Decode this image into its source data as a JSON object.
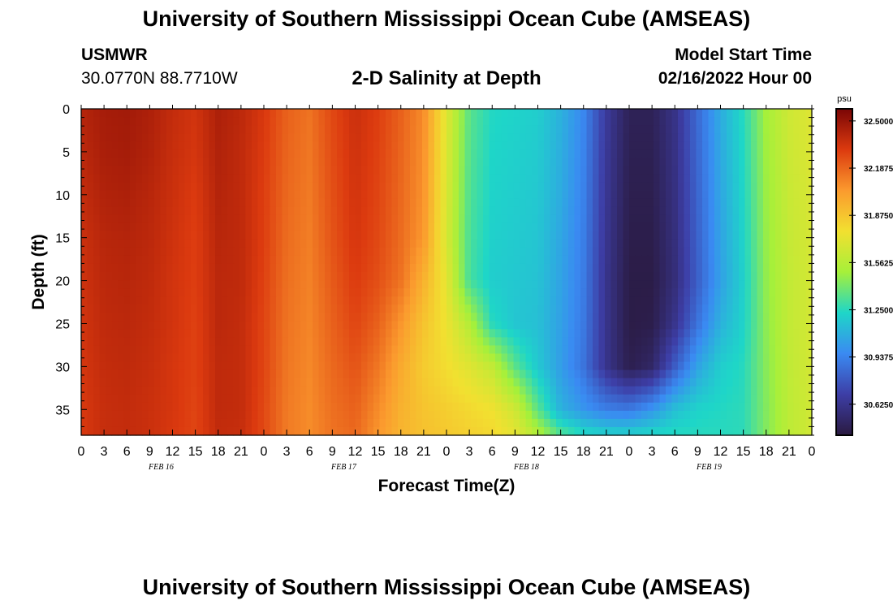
{
  "header": {
    "title": "University of Southern Mississippi Ocean Cube (AMSEAS)",
    "station": "USMWR",
    "coords": "30.0770N  88.7710W",
    "subtitle": "2-D Salinity at Depth",
    "start_label": "Model Start Time",
    "start_value": "02/16/2022 Hour 00"
  },
  "footer": {
    "title": "University of Southern Mississippi Ocean Cube (AMSEAS)"
  },
  "colors": {
    "colormap": [
      "#2a1a40",
      "#3d3ea6",
      "#3a8af2",
      "#1ed6c8",
      "#a6f03a",
      "#f2e030",
      "#fb9a2e",
      "#dc3a0f",
      "#7a0505"
    ]
  },
  "chart_data": {
    "type": "heatmap",
    "title": "2-D Salinity at Depth",
    "xlabel": "Forecast Time(Z)",
    "ylabel": "Depth (ft)",
    "x_unit": "forecast hour from 02/16/2022 00Z",
    "xlim": [
      0,
      96
    ],
    "ylim": [
      38,
      0
    ],
    "x_tick_labels": [
      "0",
      "3",
      "6",
      "9",
      "12",
      "15",
      "18",
      "21",
      "0",
      "3",
      "6",
      "9",
      "12",
      "15",
      "18",
      "21",
      "0",
      "3",
      "6",
      "9",
      "12",
      "15",
      "18",
      "21",
      "0",
      "3",
      "6",
      "9",
      "12",
      "15",
      "18",
      "21",
      "0"
    ],
    "x_date_labels": [
      {
        "hour": 10.5,
        "label": "FEB 16"
      },
      {
        "hour": 34.5,
        "label": "FEB 17"
      },
      {
        "hour": 58.5,
        "label": "FEB 18"
      },
      {
        "hour": 82.5,
        "label": "FEB 19"
      }
    ],
    "y_ticks": [
      0,
      5,
      10,
      15,
      20,
      25,
      30,
      35
    ],
    "colorbar": {
      "unit": "psu",
      "range": [
        30.42,
        32.58
      ],
      "tick_values": [
        32.5,
        32.1875,
        31.875,
        31.5625,
        31.25,
        30.9375,
        30.625
      ],
      "tick_labels": [
        "32.5000",
        "32.1875",
        "31.8750",
        "31.5625",
        "31.2500",
        "30.9375",
        "30.6250"
      ]
    },
    "depth_levels": [
      0,
      5,
      10,
      15,
      20,
      25,
      30,
      35,
      38
    ],
    "hours": [
      0,
      3,
      6,
      9,
      12,
      15,
      18,
      21,
      24,
      27,
      30,
      33,
      36,
      39,
      42,
      45,
      48,
      51,
      54,
      57,
      60,
      63,
      66,
      69,
      72,
      75,
      78,
      81,
      84,
      87,
      90,
      93,
      96
    ],
    "salinity": [
      [
        32.42,
        32.46,
        32.47,
        32.44,
        32.38,
        32.34,
        32.44,
        32.4,
        32.32,
        32.2,
        32.15,
        32.27,
        32.36,
        32.3,
        32.2,
        32.08,
        31.7,
        31.35,
        31.24,
        31.22,
        31.2,
        31.1,
        30.95,
        30.66,
        30.48,
        30.48,
        30.61,
        30.85,
        31.08,
        31.25,
        31.5,
        31.64,
        31.7
      ],
      [
        32.4,
        32.45,
        32.46,
        32.43,
        32.37,
        32.33,
        32.43,
        32.39,
        32.31,
        32.19,
        32.14,
        32.26,
        32.35,
        32.29,
        32.19,
        32.07,
        31.69,
        31.34,
        31.23,
        31.21,
        31.19,
        31.09,
        30.94,
        30.65,
        30.47,
        30.47,
        30.6,
        30.84,
        31.07,
        31.24,
        31.49,
        31.63,
        31.69
      ],
      [
        32.38,
        32.43,
        32.44,
        32.41,
        32.36,
        32.31,
        32.42,
        32.39,
        32.3,
        32.18,
        32.13,
        32.25,
        32.34,
        32.28,
        32.18,
        32.06,
        31.68,
        31.33,
        31.22,
        31.2,
        31.18,
        31.08,
        30.93,
        30.64,
        30.46,
        30.46,
        30.59,
        30.83,
        31.06,
        31.23,
        31.48,
        31.62,
        31.68
      ],
      [
        32.36,
        32.41,
        32.42,
        32.4,
        32.35,
        32.3,
        32.41,
        32.39,
        32.3,
        32.17,
        32.12,
        32.24,
        32.33,
        32.27,
        32.17,
        32.04,
        31.67,
        31.32,
        31.21,
        31.19,
        31.17,
        31.06,
        30.92,
        30.63,
        30.45,
        30.45,
        30.58,
        30.82,
        31.05,
        31.22,
        31.47,
        31.61,
        31.67
      ],
      [
        32.35,
        32.4,
        32.41,
        32.39,
        32.34,
        32.3,
        32.4,
        32.39,
        32.29,
        32.16,
        32.11,
        32.22,
        32.31,
        32.25,
        32.15,
        31.95,
        31.72,
        31.31,
        31.2,
        31.18,
        31.16,
        31.05,
        30.91,
        30.62,
        30.44,
        30.44,
        30.57,
        30.81,
        31.04,
        31.21,
        31.46,
        31.6,
        31.66
      ],
      [
        32.34,
        32.39,
        32.4,
        32.38,
        32.34,
        32.29,
        32.4,
        32.38,
        32.28,
        32.15,
        32.1,
        32.2,
        32.28,
        32.2,
        32.05,
        31.88,
        31.75,
        31.55,
        31.25,
        31.17,
        31.15,
        31.04,
        30.9,
        30.62,
        30.44,
        30.45,
        30.62,
        30.88,
        31.1,
        31.22,
        31.45,
        31.6,
        31.66
      ],
      [
        32.33,
        32.38,
        32.39,
        32.37,
        32.33,
        32.29,
        32.39,
        32.38,
        32.28,
        32.14,
        32.09,
        32.18,
        32.24,
        32.14,
        31.98,
        31.85,
        31.78,
        31.7,
        31.6,
        31.35,
        31.18,
        31.03,
        30.88,
        30.62,
        30.46,
        30.52,
        30.8,
        31.05,
        31.2,
        31.25,
        31.44,
        31.59,
        31.66
      ],
      [
        32.32,
        32.37,
        32.38,
        32.36,
        32.33,
        32.28,
        32.39,
        32.38,
        32.27,
        32.13,
        32.08,
        32.16,
        32.2,
        32.08,
        31.95,
        31.88,
        31.84,
        31.8,
        31.76,
        31.65,
        31.35,
        31.1,
        31.0,
        30.92,
        30.9,
        31.0,
        31.15,
        31.22,
        31.24,
        31.26,
        31.43,
        31.58,
        31.65
      ],
      [
        32.32,
        32.37,
        32.38,
        32.36,
        32.32,
        32.28,
        32.38,
        32.37,
        32.27,
        32.13,
        32.08,
        32.15,
        32.18,
        32.05,
        31.94,
        31.89,
        31.86,
        31.83,
        31.8,
        31.72,
        31.55,
        31.35,
        31.25,
        31.22,
        31.22,
        31.24,
        31.25,
        31.25,
        31.25,
        31.26,
        31.43,
        31.58,
        31.65
      ]
    ]
  }
}
